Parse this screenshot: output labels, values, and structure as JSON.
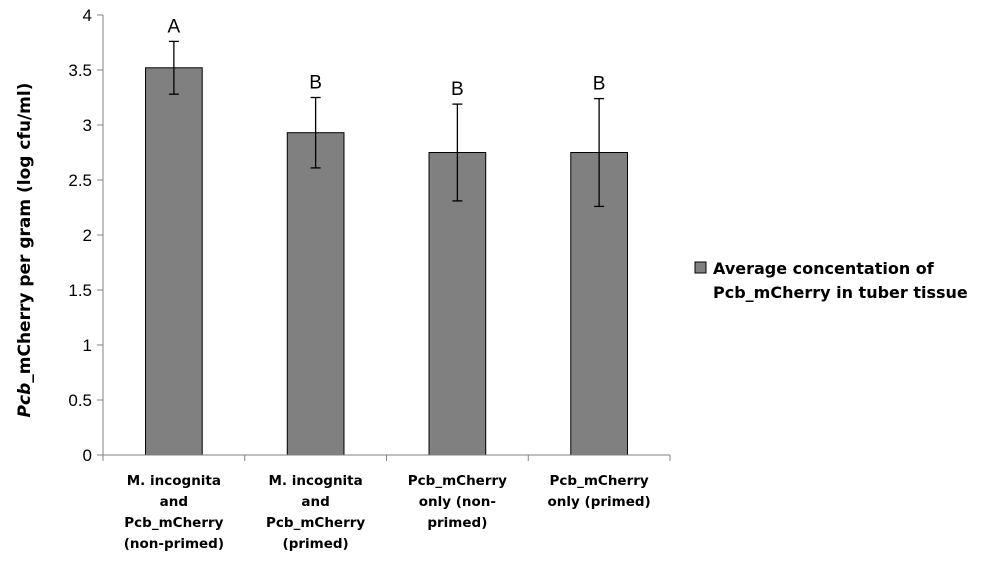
{
  "chart_data": {
    "type": "bar",
    "title": "",
    "xlabel": "",
    "ylabel": {
      "italic": "Pcb",
      "rest": "_mCherry per gram (log cfu/ml)"
    },
    "ylim": [
      0,
      4
    ],
    "yticks": [
      "0",
      "0.5",
      "1",
      "1.5",
      "2",
      "2.5",
      "3",
      "3.5",
      "4"
    ],
    "categories": [
      [
        "M. incognita",
        "and",
        "Pcb_mCherry",
        "(non-primed)"
      ],
      [
        "M. incognita",
        "and",
        "Pcb_mCherry",
        "(primed)"
      ],
      [
        "Pcb_mCherry",
        "only (non-",
        "primed)"
      ],
      [
        "Pcb_mCherry",
        "only (primed)"
      ]
    ],
    "series": [
      {
        "name": "Average concentation of Pcb_mCherry in tuber tissue",
        "values": [
          3.52,
          2.93,
          2.75,
          2.75
        ],
        "error": [
          0.24,
          0.32,
          0.44,
          0.49
        ],
        "significance": [
          "A",
          "B",
          "B",
          "B"
        ]
      }
    ],
    "legend": {
      "position": "right",
      "lines": [
        "Average concentation of",
        "Pcb_mCherry in tuber tissue"
      ]
    },
    "grid": false,
    "colors": {
      "bar": "#808080",
      "bar_edge": "#000000",
      "axis": "#808080",
      "error": "#000000"
    }
  }
}
